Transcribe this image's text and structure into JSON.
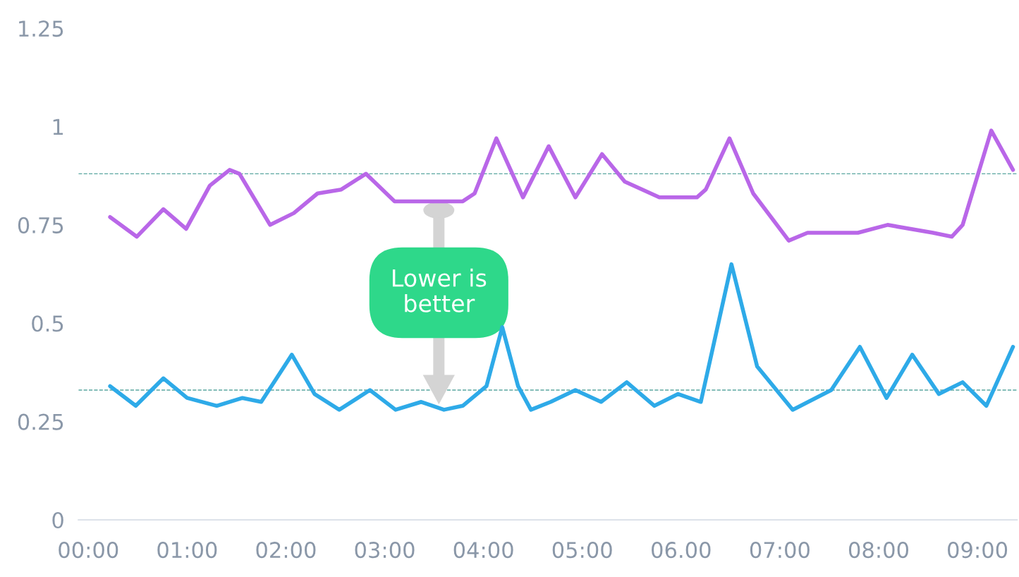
{
  "chart_data": {
    "type": "line",
    "ylim": [
      0,
      1.25
    ],
    "yticks": [
      0,
      0.25,
      0.5,
      0.75,
      1,
      1.25
    ],
    "xlim": [
      -0.1,
      9.4
    ],
    "xticks": [
      {
        "value": 0,
        "label": "00:00"
      },
      {
        "value": 1,
        "label": "01:00"
      },
      {
        "value": 2,
        "label": "02:00"
      },
      {
        "value": 3,
        "label": "03:00"
      },
      {
        "value": 4,
        "label": "04:00"
      },
      {
        "value": 5,
        "label": "05:00"
      },
      {
        "value": 6,
        "label": "06.00"
      },
      {
        "value": 7,
        "label": "07:00"
      },
      {
        "value": 8,
        "label": "08:00"
      },
      {
        "value": 9,
        "label": "09:00"
      }
    ],
    "grid": false,
    "legend": false,
    "marker": "none",
    "line_style": "solid",
    "series": [
      {
        "color": "#b967e8",
        "x": [
          0.22,
          0.49,
          0.76,
          0.99,
          1.23,
          1.43,
          1.53,
          1.84,
          2.08,
          2.32,
          2.56,
          2.81,
          3.1,
          3.34,
          3.79,
          3.91,
          4.13,
          4.4,
          4.66,
          4.93,
          5.2,
          5.43,
          5.78,
          5.97,
          6.16,
          6.25,
          6.49,
          6.73,
          7.09,
          7.28,
          7.79,
          8.09,
          8.55,
          8.74,
          8.85,
          9.14,
          9.36
        ],
        "values": [
          0.77,
          0.72,
          0.79,
          0.74,
          0.85,
          0.89,
          0.88,
          0.75,
          0.78,
          0.83,
          0.84,
          0.88,
          0.81,
          0.81,
          0.81,
          0.83,
          0.97,
          0.82,
          0.95,
          0.82,
          0.93,
          0.86,
          0.82,
          0.82,
          0.82,
          0.84,
          0.97,
          0.83,
          0.71,
          0.73,
          0.73,
          0.75,
          0.73,
          0.72,
          0.75,
          0.99,
          0.89
        ]
      },
      {
        "color": "#2eaae8",
        "x": [
          0.22,
          0.48,
          0.76,
          1.0,
          1.3,
          1.56,
          1.75,
          2.06,
          2.29,
          2.54,
          2.85,
          3.11,
          3.37,
          3.6,
          3.79,
          4.03,
          4.19,
          4.35,
          4.48,
          4.68,
          4.93,
          5.19,
          5.45,
          5.73,
          5.97,
          6.2,
          6.51,
          6.77,
          7.13,
          7.52,
          7.81,
          8.08,
          8.34,
          8.61,
          8.85,
          9.09,
          9.36
        ],
        "values": [
          0.34,
          0.29,
          0.36,
          0.31,
          0.29,
          0.31,
          0.3,
          0.42,
          0.32,
          0.28,
          0.33,
          0.28,
          0.3,
          0.28,
          0.29,
          0.34,
          0.49,
          0.34,
          0.28,
          0.3,
          0.33,
          0.3,
          0.35,
          0.29,
          0.32,
          0.3,
          0.65,
          0.39,
          0.28,
          0.33,
          0.44,
          0.31,
          0.42,
          0.32,
          0.35,
          0.29,
          0.44
        ]
      }
    ],
    "ref_lines": [
      {
        "axis": "y",
        "value": 0.88,
        "color": "#5aa6a0",
        "line_style": "dashed"
      },
      {
        "axis": "y",
        "value": 0.33,
        "color": "#5aa6a0",
        "line_style": "dashed"
      }
    ],
    "annotations": [
      "Lower is\nbetter"
    ]
  }
}
